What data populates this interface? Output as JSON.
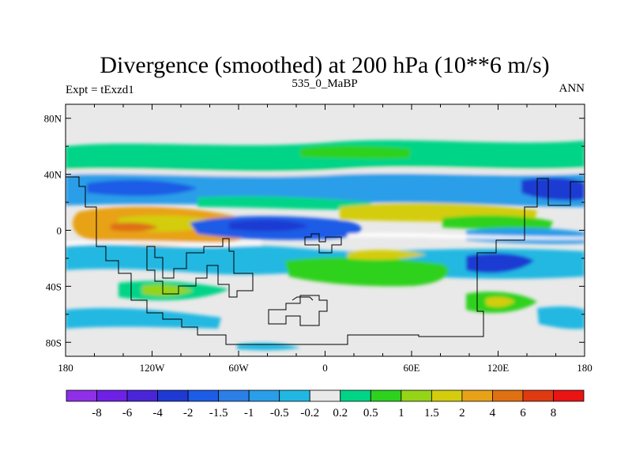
{
  "chart_data": {
    "type": "heatmap",
    "title": "Divergence (smoothed) at 200 hPa (10**6 m/s)",
    "subtitle_left": "Expt = tExzd1",
    "subtitle_center": "535_0_MaBP",
    "subtitle_right": "ANN",
    "xlim": [
      -180,
      180
    ],
    "ylim": [
      -90,
      90
    ],
    "x_ticks": [
      {
        "value": -180,
        "label": "180"
      },
      {
        "value": -120,
        "label": "120W"
      },
      {
        "value": -60,
        "label": "60W"
      },
      {
        "value": 0,
        "label": "0"
      },
      {
        "value": 60,
        "label": "60E"
      },
      {
        "value": 120,
        "label": "120E"
      },
      {
        "value": 180,
        "label": "180"
      }
    ],
    "y_ticks": [
      {
        "value": 80,
        "label": "80N"
      },
      {
        "value": 40,
        "label": "40N"
      },
      {
        "value": 0,
        "label": "0"
      },
      {
        "value": -40,
        "label": "40S"
      },
      {
        "value": -80,
        "label": "80S"
      }
    ],
    "colorbar": {
      "labels": [
        "-8",
        "-6",
        "-4",
        "-2",
        "-1.5",
        "-1",
        "-0.5",
        "-0.2",
        "0.2",
        "0.5",
        "1",
        "1.5",
        "2",
        "4",
        "6",
        "8"
      ],
      "colors": [
        "#8f2fe8",
        "#6f20e6",
        "#4a25d8",
        "#1f3ad2",
        "#1c5ce6",
        "#2b7fe6",
        "#2a9ee8",
        "#20b8e2",
        "#e9e9e9",
        "#00d487",
        "#2ed11e",
        "#96d417",
        "#d3cd0e",
        "#e8a218",
        "#e07012",
        "#e03a12",
        "#ea1414"
      ]
    }
  }
}
